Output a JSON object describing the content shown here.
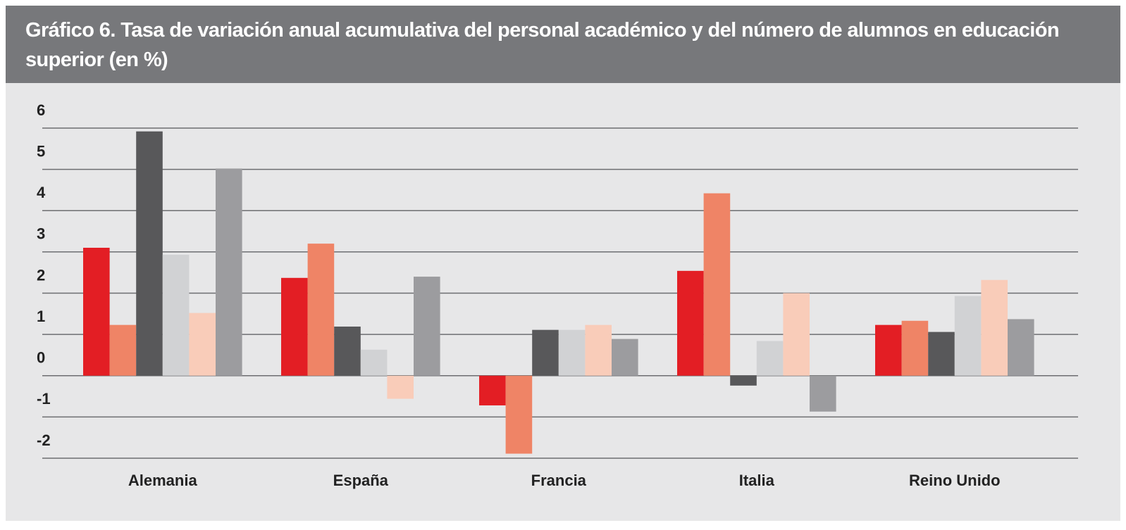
{
  "chart_data": {
    "type": "bar",
    "title": "Gráfico 6. Tasa de variación anual acumulativa del personal académico y del número de alumnos en educación superior (en %)",
    "categories": [
      "Alemania",
      "España",
      "Francia",
      "Italia",
      "Reino Unido"
    ],
    "series": [
      {
        "color": "#e31e24",
        "values": [
          3.1,
          2.37,
          -0.72,
          2.54,
          1.23
        ]
      },
      {
        "color": "#ef8466",
        "values": [
          1.23,
          3.2,
          -1.89,
          4.42,
          1.33
        ]
      },
      {
        "color": "#58585a",
        "values": [
          5.92,
          1.19,
          1.11,
          -0.24,
          1.06
        ]
      },
      {
        "color": "#d1d2d4",
        "values": [
          2.93,
          0.63,
          1.11,
          0.84,
          1.93
        ]
      },
      {
        "color": "#f9ccb9",
        "values": [
          1.52,
          -0.56,
          1.23,
          2.0,
          2.32
        ]
      },
      {
        "color": "#9c9c9f",
        "values": [
          5.02,
          2.4,
          0.89,
          -0.87,
          1.37
        ]
      }
    ],
    "ylim": [
      -2,
      6
    ],
    "yticks": [
      -2,
      -1,
      0,
      1,
      2,
      3,
      4,
      5,
      6
    ],
    "grid": true
  }
}
